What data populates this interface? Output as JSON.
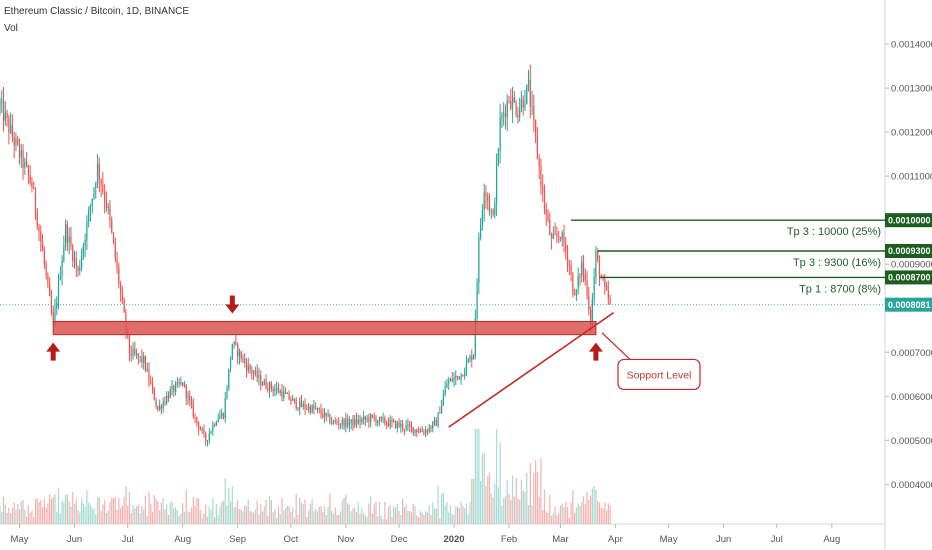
{
  "header": {
    "symbol_line": "Ethereum Classic / Bitcoin, 1D, BINANCE",
    "indicator": "Vol"
  },
  "colors": {
    "up": "#26a69a",
    "down": "#ef5350",
    "vol_up": "#a8dcd5",
    "vol_down": "#f4b4b2",
    "target": "#1b5e20",
    "current": "#26a69a",
    "support": "#c62828",
    "support_fill": "#d9534f"
  },
  "chart_data": {
    "type": "candlestick",
    "x_axis": {
      "labels": [
        "May",
        "Jun",
        "Jul",
        "Aug",
        "Sep",
        "Oct",
        "Nov",
        "Dec",
        "2020",
        "Feb",
        "Mar",
        "Apr",
        "May",
        "Jun",
        "Jul",
        "Aug"
      ],
      "range": [
        "2019-04-20",
        "2020-08-31"
      ]
    },
    "y_axis": {
      "ticks": [
        "0.0004000",
        "0.0005000",
        "0.0006000",
        "0.0007000",
        "0.0008000",
        "0.0009000",
        "0.0011000",
        "0.0012000",
        "0.0013000",
        "0.0014000"
      ],
      "range": [
        0.00031,
        0.0015
      ]
    },
    "price_path": [
      {
        "date": "2019-04-20",
        "price": 0.00126
      },
      {
        "date": "2019-05-01",
        "price": 0.00115
      },
      {
        "date": "2019-05-08",
        "price": 0.00108
      },
      {
        "date": "2019-05-15",
        "price": 0.0009
      },
      {
        "date": "2019-05-20",
        "price": 0.00076
      },
      {
        "date": "2019-05-27",
        "price": 0.00098
      },
      {
        "date": "2019-06-03",
        "price": 0.00088
      },
      {
        "date": "2019-06-08",
        "price": 0.00099
      },
      {
        "date": "2019-06-14",
        "price": 0.00112
      },
      {
        "date": "2019-06-20",
        "price": 0.00102
      },
      {
        "date": "2019-06-26",
        "price": 0.00086
      },
      {
        "date": "2019-07-02",
        "price": 0.0007
      },
      {
        "date": "2019-07-10",
        "price": 0.00068
      },
      {
        "date": "2019-07-18",
        "price": 0.00057
      },
      {
        "date": "2019-07-25",
        "price": 0.00061
      },
      {
        "date": "2019-08-01",
        "price": 0.00063
      },
      {
        "date": "2019-08-08",
        "price": 0.00055
      },
      {
        "date": "2019-08-14",
        "price": 0.0005
      },
      {
        "date": "2019-08-20",
        "price": 0.00055
      },
      {
        "date": "2019-08-24",
        "price": 0.00056
      },
      {
        "date": "2019-08-29",
        "price": 0.00072
      },
      {
        "date": "2019-09-06",
        "price": 0.00067
      },
      {
        "date": "2019-09-15",
        "price": 0.00063
      },
      {
        "date": "2019-09-25",
        "price": 0.00061
      },
      {
        "date": "2019-10-05",
        "price": 0.00058
      },
      {
        "date": "2019-10-15",
        "price": 0.00057
      },
      {
        "date": "2019-10-25",
        "price": 0.00054
      },
      {
        "date": "2019-11-05",
        "price": 0.00054
      },
      {
        "date": "2019-11-15",
        "price": 0.00055
      },
      {
        "date": "2019-11-25",
        "price": 0.00054
      },
      {
        "date": "2019-12-05",
        "price": 0.00053
      },
      {
        "date": "2019-12-15",
        "price": 0.00052
      },
      {
        "date": "2019-12-22",
        "price": 0.00054
      },
      {
        "date": "2019-12-28",
        "price": 0.00063
      },
      {
        "date": "2020-01-05",
        "price": 0.00065
      },
      {
        "date": "2020-01-12",
        "price": 0.0007
      },
      {
        "date": "2020-01-15",
        "price": 0.00095
      },
      {
        "date": "2020-01-18",
        "price": 0.00108
      },
      {
        "date": "2020-01-23",
        "price": 0.001
      },
      {
        "date": "2020-01-27",
        "price": 0.00122
      },
      {
        "date": "2020-02-01",
        "price": 0.00128
      },
      {
        "date": "2020-02-06",
        "price": 0.00125
      },
      {
        "date": "2020-02-12",
        "price": 0.0013
      },
      {
        "date": "2020-02-16",
        "price": 0.00118
      },
      {
        "date": "2020-02-21",
        "price": 0.00103
      },
      {
        "date": "2020-02-25",
        "price": 0.00095
      },
      {
        "date": "2020-03-01",
        "price": 0.00097
      },
      {
        "date": "2020-03-06",
        "price": 0.0009
      },
      {
        "date": "2020-03-09",
        "price": 0.00082
      },
      {
        "date": "2020-03-13",
        "price": 0.0009
      },
      {
        "date": "2020-03-16",
        "price": 0.00084
      },
      {
        "date": "2020-03-18",
        "price": 0.00077
      },
      {
        "date": "2020-03-21",
        "price": 0.00092
      },
      {
        "date": "2020-03-25",
        "price": 0.00085
      },
      {
        "date": "2020-03-29",
        "price": 0.00081
      }
    ],
    "current_price": "0.0008081",
    "targets": [
      {
        "label": "Tp 3 : 10000 (25%)",
        "price": 0.001,
        "badge": "0.0010000",
        "start_date": "2020-03-07"
      },
      {
        "label": "Tp 3 : 9300 (16%)",
        "price": 0.00093,
        "badge": "0.0009300",
        "start_date": "2020-03-22"
      },
      {
        "label": "Tp 1 : 8700 (8%)",
        "price": 0.00087,
        "badge": "0.0008700",
        "start_date": "2020-03-23"
      }
    ],
    "support_zone": {
      "low": 0.00074,
      "high": 0.00077,
      "start": "2019-05-20",
      "end": "2020-03-21"
    },
    "trendline": [
      {
        "date": "2019-12-29",
        "price": 0.00053
      },
      {
        "date": "2020-03-31",
        "price": 0.00079
      }
    ],
    "callout": {
      "text": "Sopport Level",
      "date": "2020-03-25",
      "price": 0.00072
    },
    "arrows_up": [
      "2019-05-20",
      "2020-03-21"
    ],
    "arrows_down": [
      "2019-08-29"
    ]
  }
}
